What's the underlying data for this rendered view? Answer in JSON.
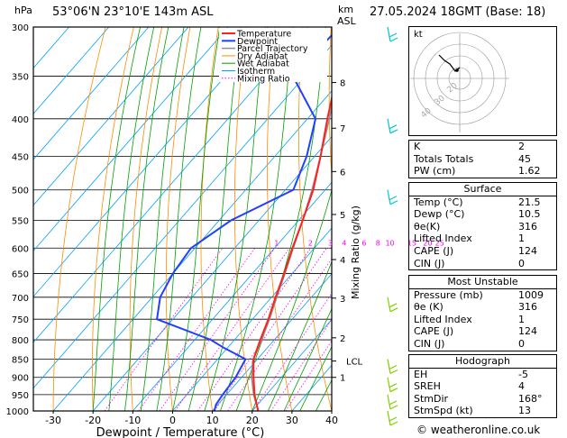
{
  "header": {
    "pressure_unit": "hPa",
    "location": "53°06'N  23°10'E  143m  ASL",
    "height_unit_line1": "km",
    "height_unit_line2": "ASL",
    "datetime": "27.05.2024  18GMT  (Base: 18)"
  },
  "footer": {
    "copyright": "© weatheronline.co.uk"
  },
  "colors": {
    "temperature": "#ff2020",
    "dewpoint": "#2040ff",
    "parcel": "#909090",
    "dry_adiabat": "#ff8c00",
    "wet_adiabat": "#00a000",
    "isotherm": "#00a0ff",
    "mixing_ratio": "#ff00ff",
    "wind_barb": "#00c8c8",
    "wind_barb_low": "#80d000"
  },
  "legend": [
    {
      "label": "Temperature",
      "style": "temperature"
    },
    {
      "label": "Dewpoint",
      "style": "dewpoint"
    },
    {
      "label": "Parcel Trajectory",
      "style": "parcel"
    },
    {
      "label": "Dry Adiabat",
      "style": "dry_adiabat"
    },
    {
      "label": "Wet Adiabat",
      "style": "wet_adiabat"
    },
    {
      "label": "Isotherm",
      "style": "isotherm"
    },
    {
      "label": "Mixing Ratio",
      "style": "mixing_ratio"
    }
  ],
  "chart_data": {
    "type": "line",
    "title": "",
    "xlabel": "Dewpoint / Temperature (°C)",
    "ylabel": "hPa",
    "right_label": "Mixing Ratio (g/kg)",
    "xlim": [
      -35,
      40
    ],
    "x_ticks": [
      -30,
      -20,
      -10,
      0,
      10,
      20,
      30,
      40
    ],
    "pressure_levels": [
      300,
      350,
      400,
      450,
      500,
      550,
      600,
      650,
      700,
      750,
      800,
      850,
      900,
      950,
      1000
    ],
    "height_ticks_km": [
      {
        "label": "8",
        "p": 357
      },
      {
        "label": "7",
        "p": 412
      },
      {
        "label": "6",
        "p": 472
      },
      {
        "label": "5",
        "p": 540
      },
      {
        "label": "4",
        "p": 622
      },
      {
        "label": "3",
        "p": 702
      },
      {
        "label": "2",
        "p": 795
      },
      {
        "label": "LCL",
        "p": 855
      },
      {
        "label": "1",
        "p": 900
      }
    ],
    "mixing_ratio_labels": [
      {
        "label": "1",
        "x": -9.5
      },
      {
        "label": "2",
        "x": -1
      },
      {
        "label": "3",
        "x": 4
      },
      {
        "label": "4",
        "x": 7.5
      },
      {
        "label": "6",
        "x": 12.5
      },
      {
        "label": "8",
        "x": 16
      },
      {
        "label": "10",
        "x": 19
      },
      {
        "label": "15",
        "x": 24.5
      },
      {
        "label": "20",
        "x": 28.5
      },
      {
        "label": "25",
        "x": 31.5
      }
    ],
    "series": [
      {
        "name": "Temperature",
        "points": [
          [
            1000,
            21.5
          ],
          [
            950,
            17
          ],
          [
            900,
            13
          ],
          [
            850,
            9
          ],
          [
            800,
            6.5
          ],
          [
            750,
            4
          ],
          [
            700,
            1
          ],
          [
            650,
            -2
          ],
          [
            600,
            -5.5
          ],
          [
            550,
            -9
          ],
          [
            500,
            -13
          ],
          [
            450,
            -18.5
          ],
          [
            400,
            -25
          ],
          [
            350,
            -32
          ],
          [
            300,
            -39
          ]
        ]
      },
      {
        "name": "Dewpoint",
        "points": [
          [
            1000,
            10.5
          ],
          [
            980,
            9.5
          ],
          [
            950,
            9
          ],
          [
            900,
            8.5
          ],
          [
            850,
            7
          ],
          [
            820,
            -1
          ],
          [
            800,
            -6
          ],
          [
            750,
            -24
          ],
          [
            700,
            -28
          ],
          [
            650,
            -30
          ],
          [
            600,
            -31
          ],
          [
            550,
            -27
          ],
          [
            500,
            -18
          ],
          [
            450,
            -22
          ],
          [
            400,
            -28
          ],
          [
            350,
            -43
          ],
          [
            300,
            -42
          ]
        ]
      },
      {
        "name": "Parcel Trajectory",
        "points": [
          [
            1000,
            21.5
          ],
          [
            950,
            16.8
          ],
          [
            900,
            12.5
          ],
          [
            855,
            9.2
          ],
          [
            800,
            6.8
          ],
          [
            750,
            4.3
          ],
          [
            700,
            1.3
          ],
          [
            650,
            -1.8
          ],
          [
            600,
            -5.3
          ],
          [
            550,
            -9
          ],
          [
            500,
            -13.3
          ],
          [
            450,
            -18.5
          ],
          [
            400,
            -24.5
          ],
          [
            350,
            -31.8
          ],
          [
            300,
            -40.5
          ]
        ]
      }
    ],
    "wind_barbs": [
      {
        "p": 300,
        "color": "wind_barb"
      },
      {
        "p": 400,
        "color": "wind_barb"
      },
      {
        "p": 500,
        "color": "wind_barb"
      },
      {
        "p": 700,
        "color": "wind_barb_low"
      },
      {
        "p": 850,
        "color": "wind_barb_low"
      },
      {
        "p": 900,
        "color": "wind_barb_low"
      },
      {
        "p": 950,
        "color": "wind_barb_low"
      },
      {
        "p": 1000,
        "color": "wind_barb_low"
      }
    ]
  },
  "hodograph": {
    "unit_label": "kt",
    "ring_labels": [
      "20",
      "30",
      "40"
    ]
  },
  "indices": {
    "top": [
      {
        "k": "K",
        "v": "2"
      },
      {
        "k": "Totals Totals",
        "v": "45"
      },
      {
        "k": "PW (cm)",
        "v": "1.62"
      }
    ],
    "surface": {
      "title": "Surface",
      "rows": [
        {
          "k": "Temp (°C)",
          "v": "21.5"
        },
        {
          "k": "Dewp (°C)",
          "v": "10.5"
        },
        {
          "k": "θe(K)",
          "v": "316"
        },
        {
          "k": "Lifted Index",
          "v": "1"
        },
        {
          "k": "CAPE (J)",
          "v": "124"
        },
        {
          "k": "CIN (J)",
          "v": "0"
        }
      ]
    },
    "most_unstable": {
      "title": "Most Unstable",
      "rows": [
        {
          "k": "Pressure (mb)",
          "v": "1009"
        },
        {
          "k": "θe (K)",
          "v": "316"
        },
        {
          "k": "Lifted Index",
          "v": "1"
        },
        {
          "k": "CAPE (J)",
          "v": "124"
        },
        {
          "k": "CIN (J)",
          "v": "0"
        }
      ]
    },
    "hodograph": {
      "title": "Hodograph",
      "rows": [
        {
          "k": "EH",
          "v": "-5"
        },
        {
          "k": "SREH",
          "v": "4"
        },
        {
          "k": "StmDir",
          "v": "168°"
        },
        {
          "k": "StmSpd (kt)",
          "v": "13"
        }
      ]
    }
  }
}
